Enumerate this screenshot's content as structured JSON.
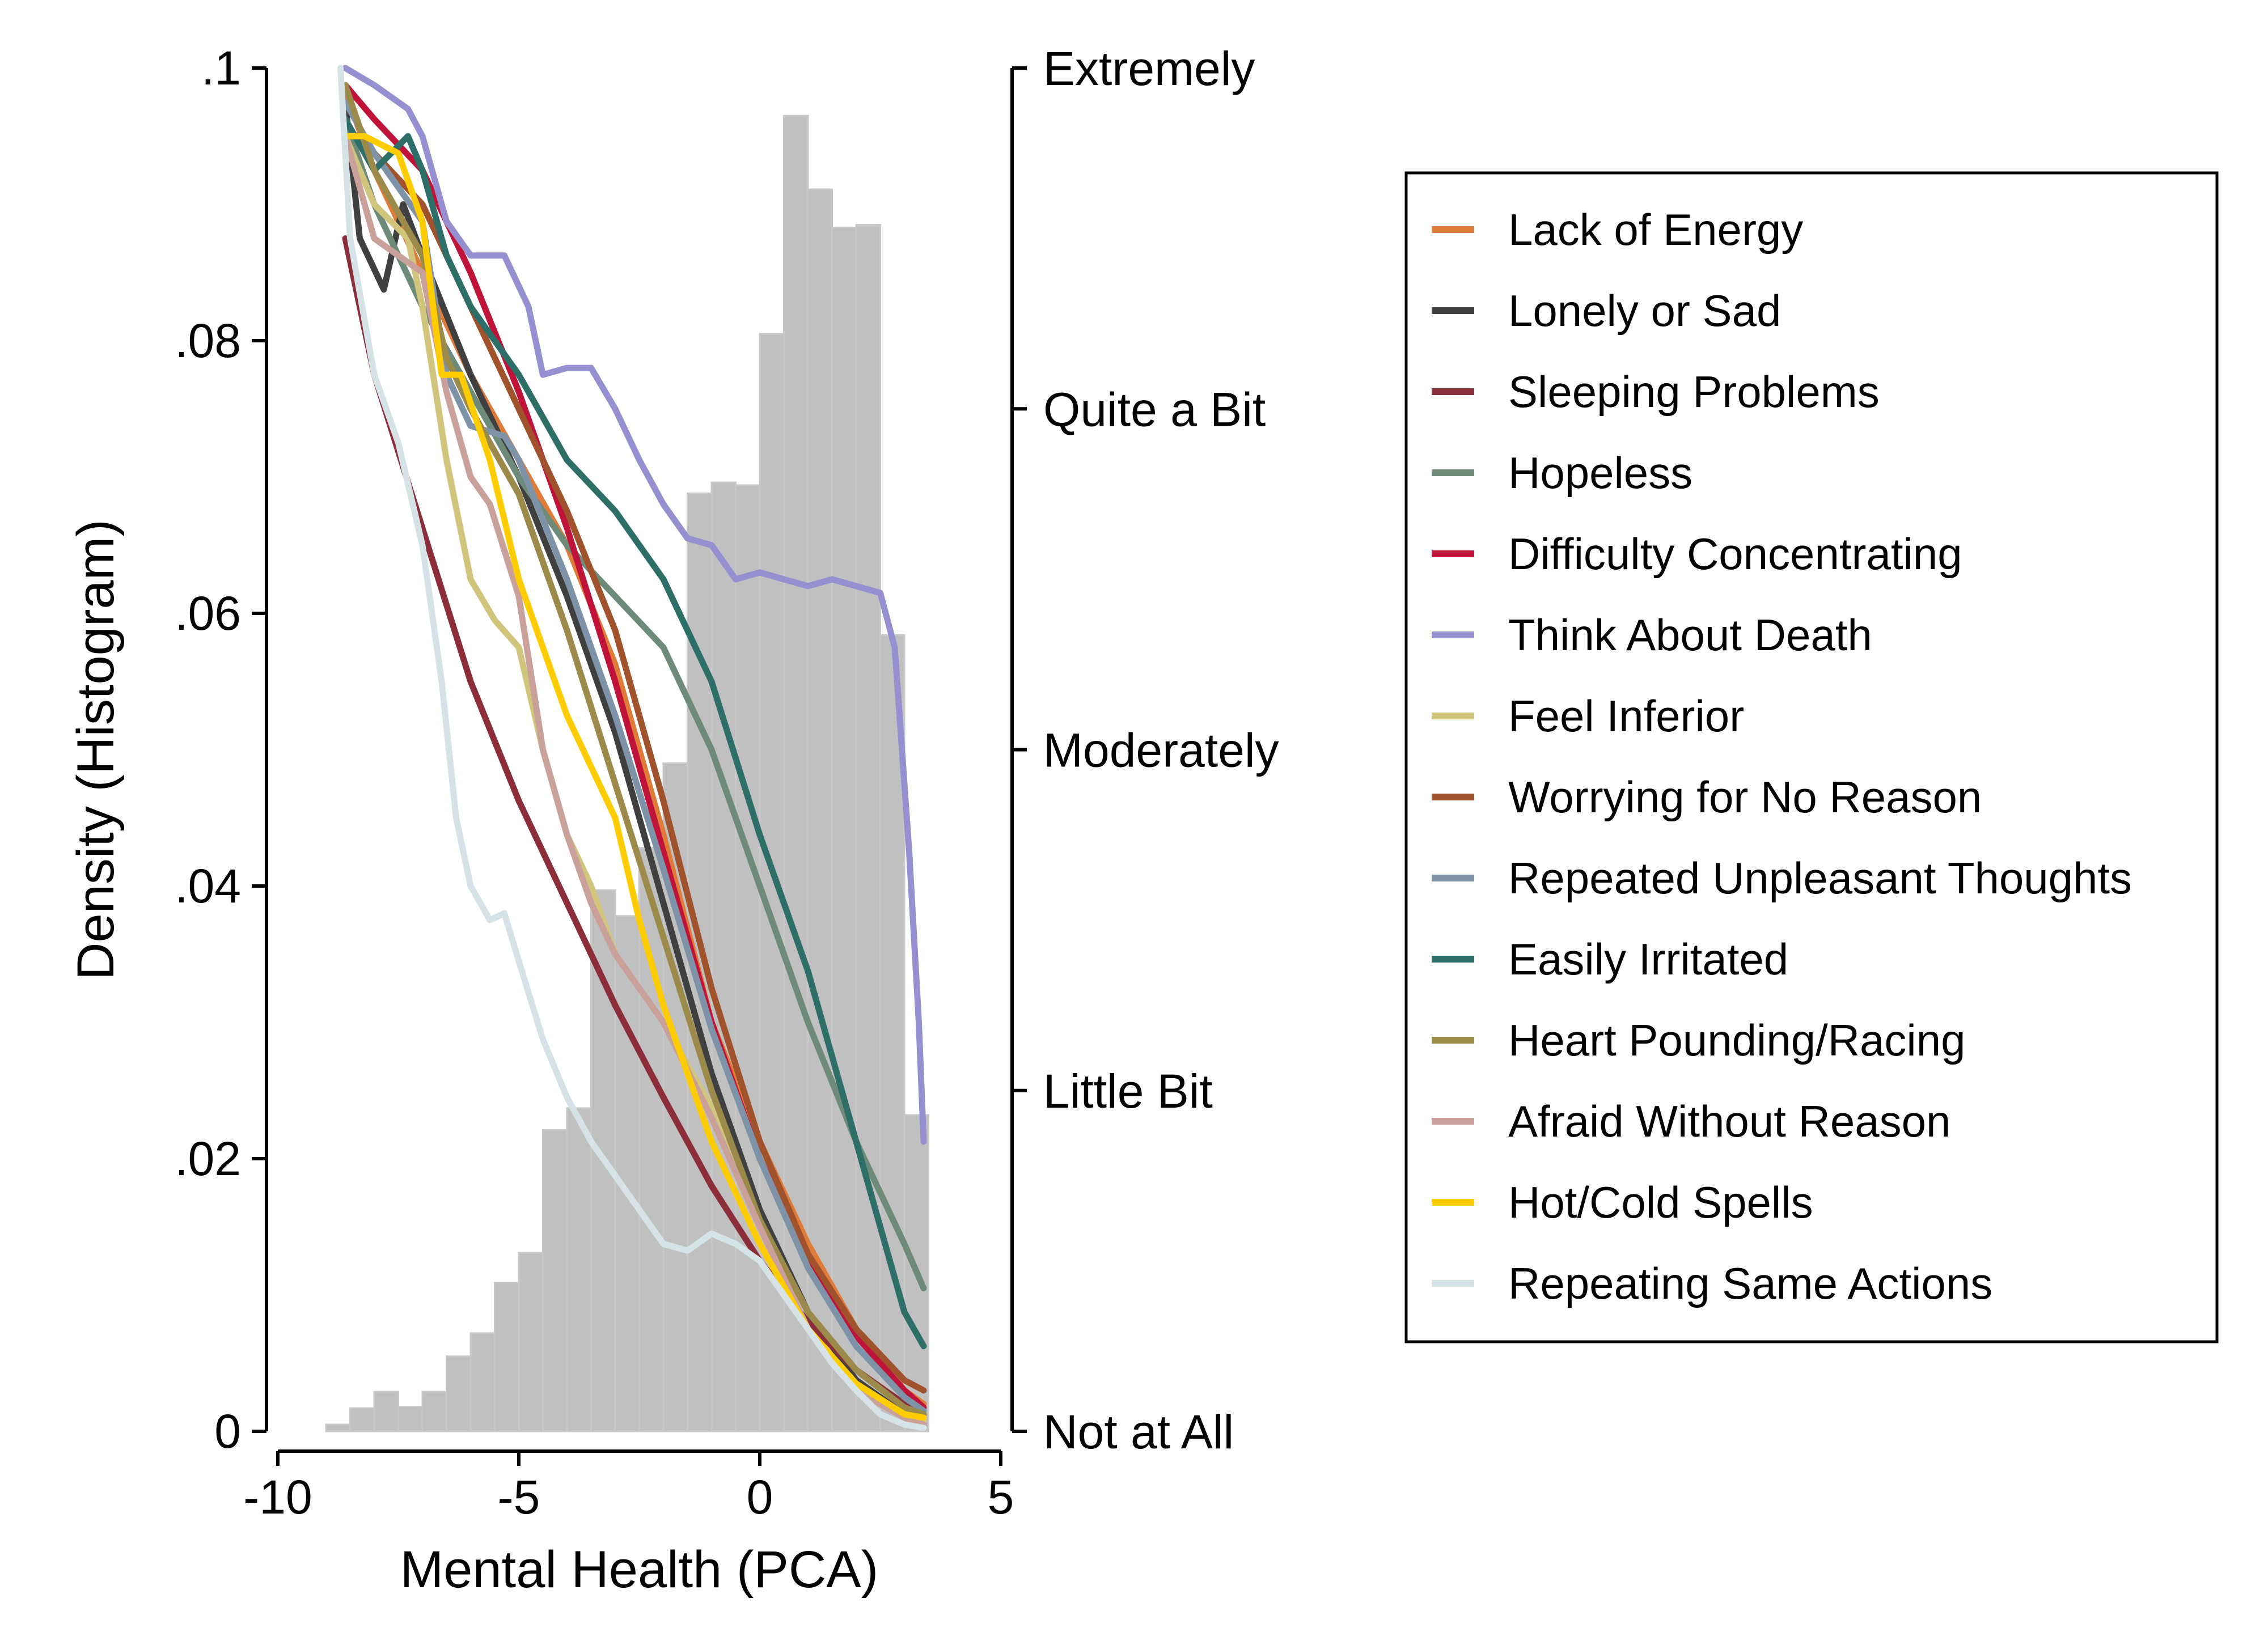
{
  "chart_data": {
    "type": "line",
    "xlabel": "Mental Health (PCA)",
    "ylabel": "Density (Histogram)",
    "xlim": [
      -10,
      5
    ],
    "ylim": [
      0,
      0.1
    ],
    "x_ticks": [
      {
        "value": -10,
        "label": "-10"
      },
      {
        "value": -5,
        "label": "-5"
      },
      {
        "value": 0,
        "label": "0"
      },
      {
        "value": 5,
        "label": "5"
      }
    ],
    "y_ticks": [
      {
        "value": 0,
        "label": "0"
      },
      {
        "value": 0.02,
        "label": ".02"
      },
      {
        "value": 0.04,
        "label": ".04"
      },
      {
        "value": 0.06,
        "label": ".06"
      },
      {
        "value": 0.08,
        "label": ".08"
      },
      {
        "value": 0.1,
        "label": ".1"
      }
    ],
    "y2_ticks": [
      {
        "value": 0,
        "label": "Not at All"
      },
      {
        "value": 1,
        "label": "Little Bit"
      },
      {
        "value": 2,
        "label": "Moderately"
      },
      {
        "value": 3,
        "label": "Quite a Bit"
      },
      {
        "value": 4,
        "label": "Extremely"
      }
    ],
    "y2lim": [
      0,
      4
    ],
    "legend_position": "right",
    "histogram": {
      "bin_width": 0.5,
      "bins": [
        [
          -8.75,
          0.0005
        ],
        [
          -8.25,
          0.0017
        ],
        [
          -7.75,
          0.0029
        ],
        [
          -7.25,
          0.0018
        ],
        [
          -6.75,
          0.0029
        ],
        [
          -6.25,
          0.0055
        ],
        [
          -5.75,
          0.0072
        ],
        [
          -5.25,
          0.0109
        ],
        [
          -4.75,
          0.0131
        ],
        [
          -4.25,
          0.0221
        ],
        [
          -3.75,
          0.0237
        ],
        [
          -3.25,
          0.0397
        ],
        [
          -2.75,
          0.0378
        ],
        [
          -2.25,
          0.0428
        ],
        [
          -1.75,
          0.049
        ],
        [
          -1.25,
          0.0688
        ],
        [
          -0.75,
          0.0696
        ],
        [
          -0.25,
          0.0694
        ],
        [
          0.25,
          0.0805
        ],
        [
          0.75,
          0.0965
        ],
        [
          1.25,
          0.0911
        ],
        [
          1.75,
          0.0883
        ],
        [
          2.25,
          0.0885
        ],
        [
          2.75,
          0.0584
        ],
        [
          3.25,
          0.0232
        ]
      ]
    },
    "series": [
      {
        "name": "Lack of Energy",
        "color": "#e07b39",
        "points": [
          [
            -8.6,
            3.93
          ],
          [
            -8,
            3.7
          ],
          [
            -7,
            3.4
          ],
          [
            -6,
            3.1
          ],
          [
            -5,
            2.85
          ],
          [
            -4,
            2.6
          ],
          [
            -3,
            2.25
          ],
          [
            -2,
            1.75
          ],
          [
            -1,
            1.2
          ],
          [
            0,
            0.85
          ],
          [
            1,
            0.55
          ],
          [
            2,
            0.3
          ],
          [
            3,
            0.12
          ],
          [
            3.4,
            0.08
          ]
        ]
      },
      {
        "name": "Lonely or Sad",
        "color": "#404040",
        "points": [
          [
            -8.6,
            3.9
          ],
          [
            -8.3,
            3.5
          ],
          [
            -7.8,
            3.35
          ],
          [
            -7.4,
            3.6
          ],
          [
            -7,
            3.45
          ],
          [
            -6,
            3.1
          ],
          [
            -5,
            2.8
          ],
          [
            -4,
            2.45
          ],
          [
            -3,
            2.05
          ],
          [
            -2,
            1.55
          ],
          [
            -1,
            1.05
          ],
          [
            0,
            0.65
          ],
          [
            1,
            0.35
          ],
          [
            2,
            0.15
          ],
          [
            3,
            0.05
          ],
          [
            3.4,
            0.02
          ]
        ]
      },
      {
        "name": "Sleeping Problems",
        "color": "#8b2e3a",
        "points": [
          [
            -8.6,
            3.5
          ],
          [
            -8,
            3.1
          ],
          [
            -7,
            2.65
          ],
          [
            -6,
            2.2
          ],
          [
            -5,
            1.85
          ],
          [
            -4,
            1.55
          ],
          [
            -3,
            1.25
          ],
          [
            -2,
            0.98
          ],
          [
            -1,
            0.72
          ],
          [
            0,
            0.5
          ],
          [
            1,
            0.32
          ],
          [
            2,
            0.18
          ],
          [
            3,
            0.08
          ],
          [
            3.4,
            0.05
          ]
        ]
      },
      {
        "name": "Hopeless",
        "color": "#6e8b7a",
        "points": [
          [
            -8.6,
            3.85
          ],
          [
            -8,
            3.6
          ],
          [
            -7,
            3.3
          ],
          [
            -6,
            3.05
          ],
          [
            -5,
            2.8
          ],
          [
            -4,
            2.6
          ],
          [
            -3,
            2.45
          ],
          [
            -2,
            2.3
          ],
          [
            -1,
            2.0
          ],
          [
            0,
            1.6
          ],
          [
            1,
            1.2
          ],
          [
            2,
            0.85
          ],
          [
            3,
            0.55
          ],
          [
            3.4,
            0.42
          ]
        ]
      },
      {
        "name": "Difficulty Concentrating",
        "color": "#c0133a",
        "points": [
          [
            -8.6,
            3.95
          ],
          [
            -8,
            3.85
          ],
          [
            -7,
            3.7
          ],
          [
            -6,
            3.4
          ],
          [
            -5,
            3.05
          ],
          [
            -4,
            2.65
          ],
          [
            -3,
            2.2
          ],
          [
            -2,
            1.7
          ],
          [
            -1,
            1.2
          ],
          [
            0,
            0.8
          ],
          [
            1,
            0.5
          ],
          [
            2,
            0.28
          ],
          [
            3,
            0.12
          ],
          [
            3.4,
            0.07
          ]
        ]
      },
      {
        "name": "Think About Death",
        "color": "#9690d0",
        "points": [
          [
            -8.6,
            4.0
          ],
          [
            -8,
            3.95
          ],
          [
            -7.3,
            3.88
          ],
          [
            -7,
            3.8
          ],
          [
            -6.5,
            3.55
          ],
          [
            -6,
            3.45
          ],
          [
            -5.3,
            3.45
          ],
          [
            -4.8,
            3.3
          ],
          [
            -4.5,
            3.1
          ],
          [
            -4,
            3.12
          ],
          [
            -3.5,
            3.12
          ],
          [
            -3,
            3.0
          ],
          [
            -2.5,
            2.85
          ],
          [
            -2,
            2.72
          ],
          [
            -1.5,
            2.62
          ],
          [
            -1,
            2.6
          ],
          [
            -0.5,
            2.5
          ],
          [
            0,
            2.52
          ],
          [
            0.5,
            2.5
          ],
          [
            1,
            2.48
          ],
          [
            1.5,
            2.5
          ],
          [
            2,
            2.48
          ],
          [
            2.5,
            2.46
          ],
          [
            2.8,
            2.3
          ],
          [
            3.1,
            1.7
          ],
          [
            3.3,
            1.2
          ],
          [
            3.4,
            0.85
          ]
        ]
      },
      {
        "name": "Feel Inferior",
        "color": "#d1c57e",
        "points": [
          [
            -8.6,
            3.8
          ],
          [
            -8,
            3.6
          ],
          [
            -7.3,
            3.5
          ],
          [
            -7,
            3.3
          ],
          [
            -6.5,
            2.85
          ],
          [
            -6,
            2.5
          ],
          [
            -5.5,
            2.38
          ],
          [
            -5,
            2.3
          ],
          [
            -4.5,
            2.0
          ],
          [
            -4,
            1.75
          ],
          [
            -3.5,
            1.6
          ],
          [
            -3,
            1.4
          ],
          [
            -2,
            1.2
          ],
          [
            -1,
            0.95
          ],
          [
            0,
            0.6
          ],
          [
            1,
            0.3
          ],
          [
            2,
            0.12
          ],
          [
            3,
            0.05
          ],
          [
            3.4,
            0.03
          ]
        ]
      },
      {
        "name": "Worrying for No Reason",
        "color": "#a0522d",
        "points": [
          [
            -8.6,
            3.9
          ],
          [
            -8,
            3.75
          ],
          [
            -7,
            3.6
          ],
          [
            -6,
            3.3
          ],
          [
            -5,
            3.0
          ],
          [
            -4,
            2.7
          ],
          [
            -3,
            2.35
          ],
          [
            -2,
            1.85
          ],
          [
            -1,
            1.3
          ],
          [
            0,
            0.85
          ],
          [
            1,
            0.52
          ],
          [
            2,
            0.3
          ],
          [
            3,
            0.15
          ],
          [
            3.4,
            0.12
          ]
        ]
      },
      {
        "name": "Repeated Unpleasant Thoughts",
        "color": "#7f93a8",
        "points": [
          [
            -8.6,
            3.9
          ],
          [
            -8,
            3.75
          ],
          [
            -7,
            3.55
          ],
          [
            -6.5,
            3.1
          ],
          [
            -6,
            2.95
          ],
          [
            -5.3,
            2.92
          ],
          [
            -5,
            2.85
          ],
          [
            -4,
            2.5
          ],
          [
            -3,
            2.1
          ],
          [
            -2,
            1.65
          ],
          [
            -1,
            1.18
          ],
          [
            0,
            0.8
          ],
          [
            1,
            0.48
          ],
          [
            2,
            0.25
          ],
          [
            3,
            0.1
          ],
          [
            3.4,
            0.06
          ]
        ]
      },
      {
        "name": "Easily Irritated",
        "color": "#2e6e68",
        "points": [
          [
            -8.6,
            3.85
          ],
          [
            -8,
            3.7
          ],
          [
            -7.3,
            3.8
          ],
          [
            -7,
            3.7
          ],
          [
            -6.5,
            3.45
          ],
          [
            -6,
            3.3
          ],
          [
            -5,
            3.1
          ],
          [
            -4,
            2.85
          ],
          [
            -3,
            2.7
          ],
          [
            -2,
            2.5
          ],
          [
            -1,
            2.2
          ],
          [
            0,
            1.75
          ],
          [
            1,
            1.35
          ],
          [
            2,
            0.85
          ],
          [
            3,
            0.35
          ],
          [
            3.4,
            0.25
          ]
        ]
      },
      {
        "name": "Heart Pounding/Racing",
        "color": "#9c8a4a",
        "points": [
          [
            -8.6,
            3.95
          ],
          [
            -8,
            3.7
          ],
          [
            -7,
            3.45
          ],
          [
            -6.5,
            3.15
          ],
          [
            -6,
            3.0
          ],
          [
            -5,
            2.75
          ],
          [
            -4,
            2.35
          ],
          [
            -3,
            1.9
          ],
          [
            -2,
            1.45
          ],
          [
            -1,
            1.0
          ],
          [
            0,
            0.62
          ],
          [
            1,
            0.35
          ],
          [
            2,
            0.18
          ],
          [
            3,
            0.07
          ],
          [
            3.4,
            0.05
          ]
        ]
      },
      {
        "name": "Afraid Without Reason",
        "color": "#c9a19a",
        "points": [
          [
            -8.6,
            3.8
          ],
          [
            -8,
            3.5
          ],
          [
            -7,
            3.4
          ],
          [
            -6.5,
            3.05
          ],
          [
            -6,
            2.8
          ],
          [
            -5.6,
            2.72
          ],
          [
            -5,
            2.45
          ],
          [
            -4.5,
            2.0
          ],
          [
            -4,
            1.75
          ],
          [
            -3.5,
            1.55
          ],
          [
            -3,
            1.4
          ],
          [
            -2,
            1.2
          ],
          [
            -1,
            0.92
          ],
          [
            0,
            0.6
          ],
          [
            1,
            0.3
          ],
          [
            2,
            0.12
          ],
          [
            3,
            0.04
          ],
          [
            3.4,
            0.02
          ]
        ]
      },
      {
        "name": "Hot/Cold Spells",
        "color": "#ffcc00",
        "points": [
          [
            -8.6,
            3.8
          ],
          [
            -8.2,
            3.8
          ],
          [
            -7.5,
            3.75
          ],
          [
            -7,
            3.55
          ],
          [
            -6.6,
            3.1
          ],
          [
            -6.2,
            3.1
          ],
          [
            -5.6,
            2.85
          ],
          [
            -5,
            2.5
          ],
          [
            -4.5,
            2.3
          ],
          [
            -4,
            2.1
          ],
          [
            -3.5,
            1.95
          ],
          [
            -3,
            1.8
          ],
          [
            -2.5,
            1.5
          ],
          [
            -2,
            1.25
          ],
          [
            -1.5,
            1.05
          ],
          [
            -1,
            0.85
          ],
          [
            0,
            0.55
          ],
          [
            1,
            0.3
          ],
          [
            2,
            0.14
          ],
          [
            3,
            0.05
          ],
          [
            3.4,
            0.04
          ]
        ]
      },
      {
        "name": "Repeating Same Actions",
        "color": "#d6e3e6",
        "points": [
          [
            -8.7,
            4.0
          ],
          [
            -8.5,
            3.5
          ],
          [
            -8,
            3.1
          ],
          [
            -7.5,
            2.9
          ],
          [
            -7,
            2.6
          ],
          [
            -6.6,
            2.2
          ],
          [
            -6.3,
            1.8
          ],
          [
            -6,
            1.6
          ],
          [
            -5.6,
            1.5
          ],
          [
            -5.3,
            1.52
          ],
          [
            -5,
            1.38
          ],
          [
            -4.5,
            1.15
          ],
          [
            -4,
            0.98
          ],
          [
            -3.5,
            0.85
          ],
          [
            -3,
            0.75
          ],
          [
            -2.5,
            0.65
          ],
          [
            -2,
            0.55
          ],
          [
            -1.5,
            0.53
          ],
          [
            -1,
            0.58
          ],
          [
            -0.5,
            0.55
          ],
          [
            0,
            0.5
          ],
          [
            0.5,
            0.4
          ],
          [
            1,
            0.3
          ],
          [
            1.5,
            0.2
          ],
          [
            2,
            0.12
          ],
          [
            2.5,
            0.05
          ],
          [
            3,
            0.02
          ],
          [
            3.4,
            0.01
          ]
        ]
      }
    ]
  }
}
